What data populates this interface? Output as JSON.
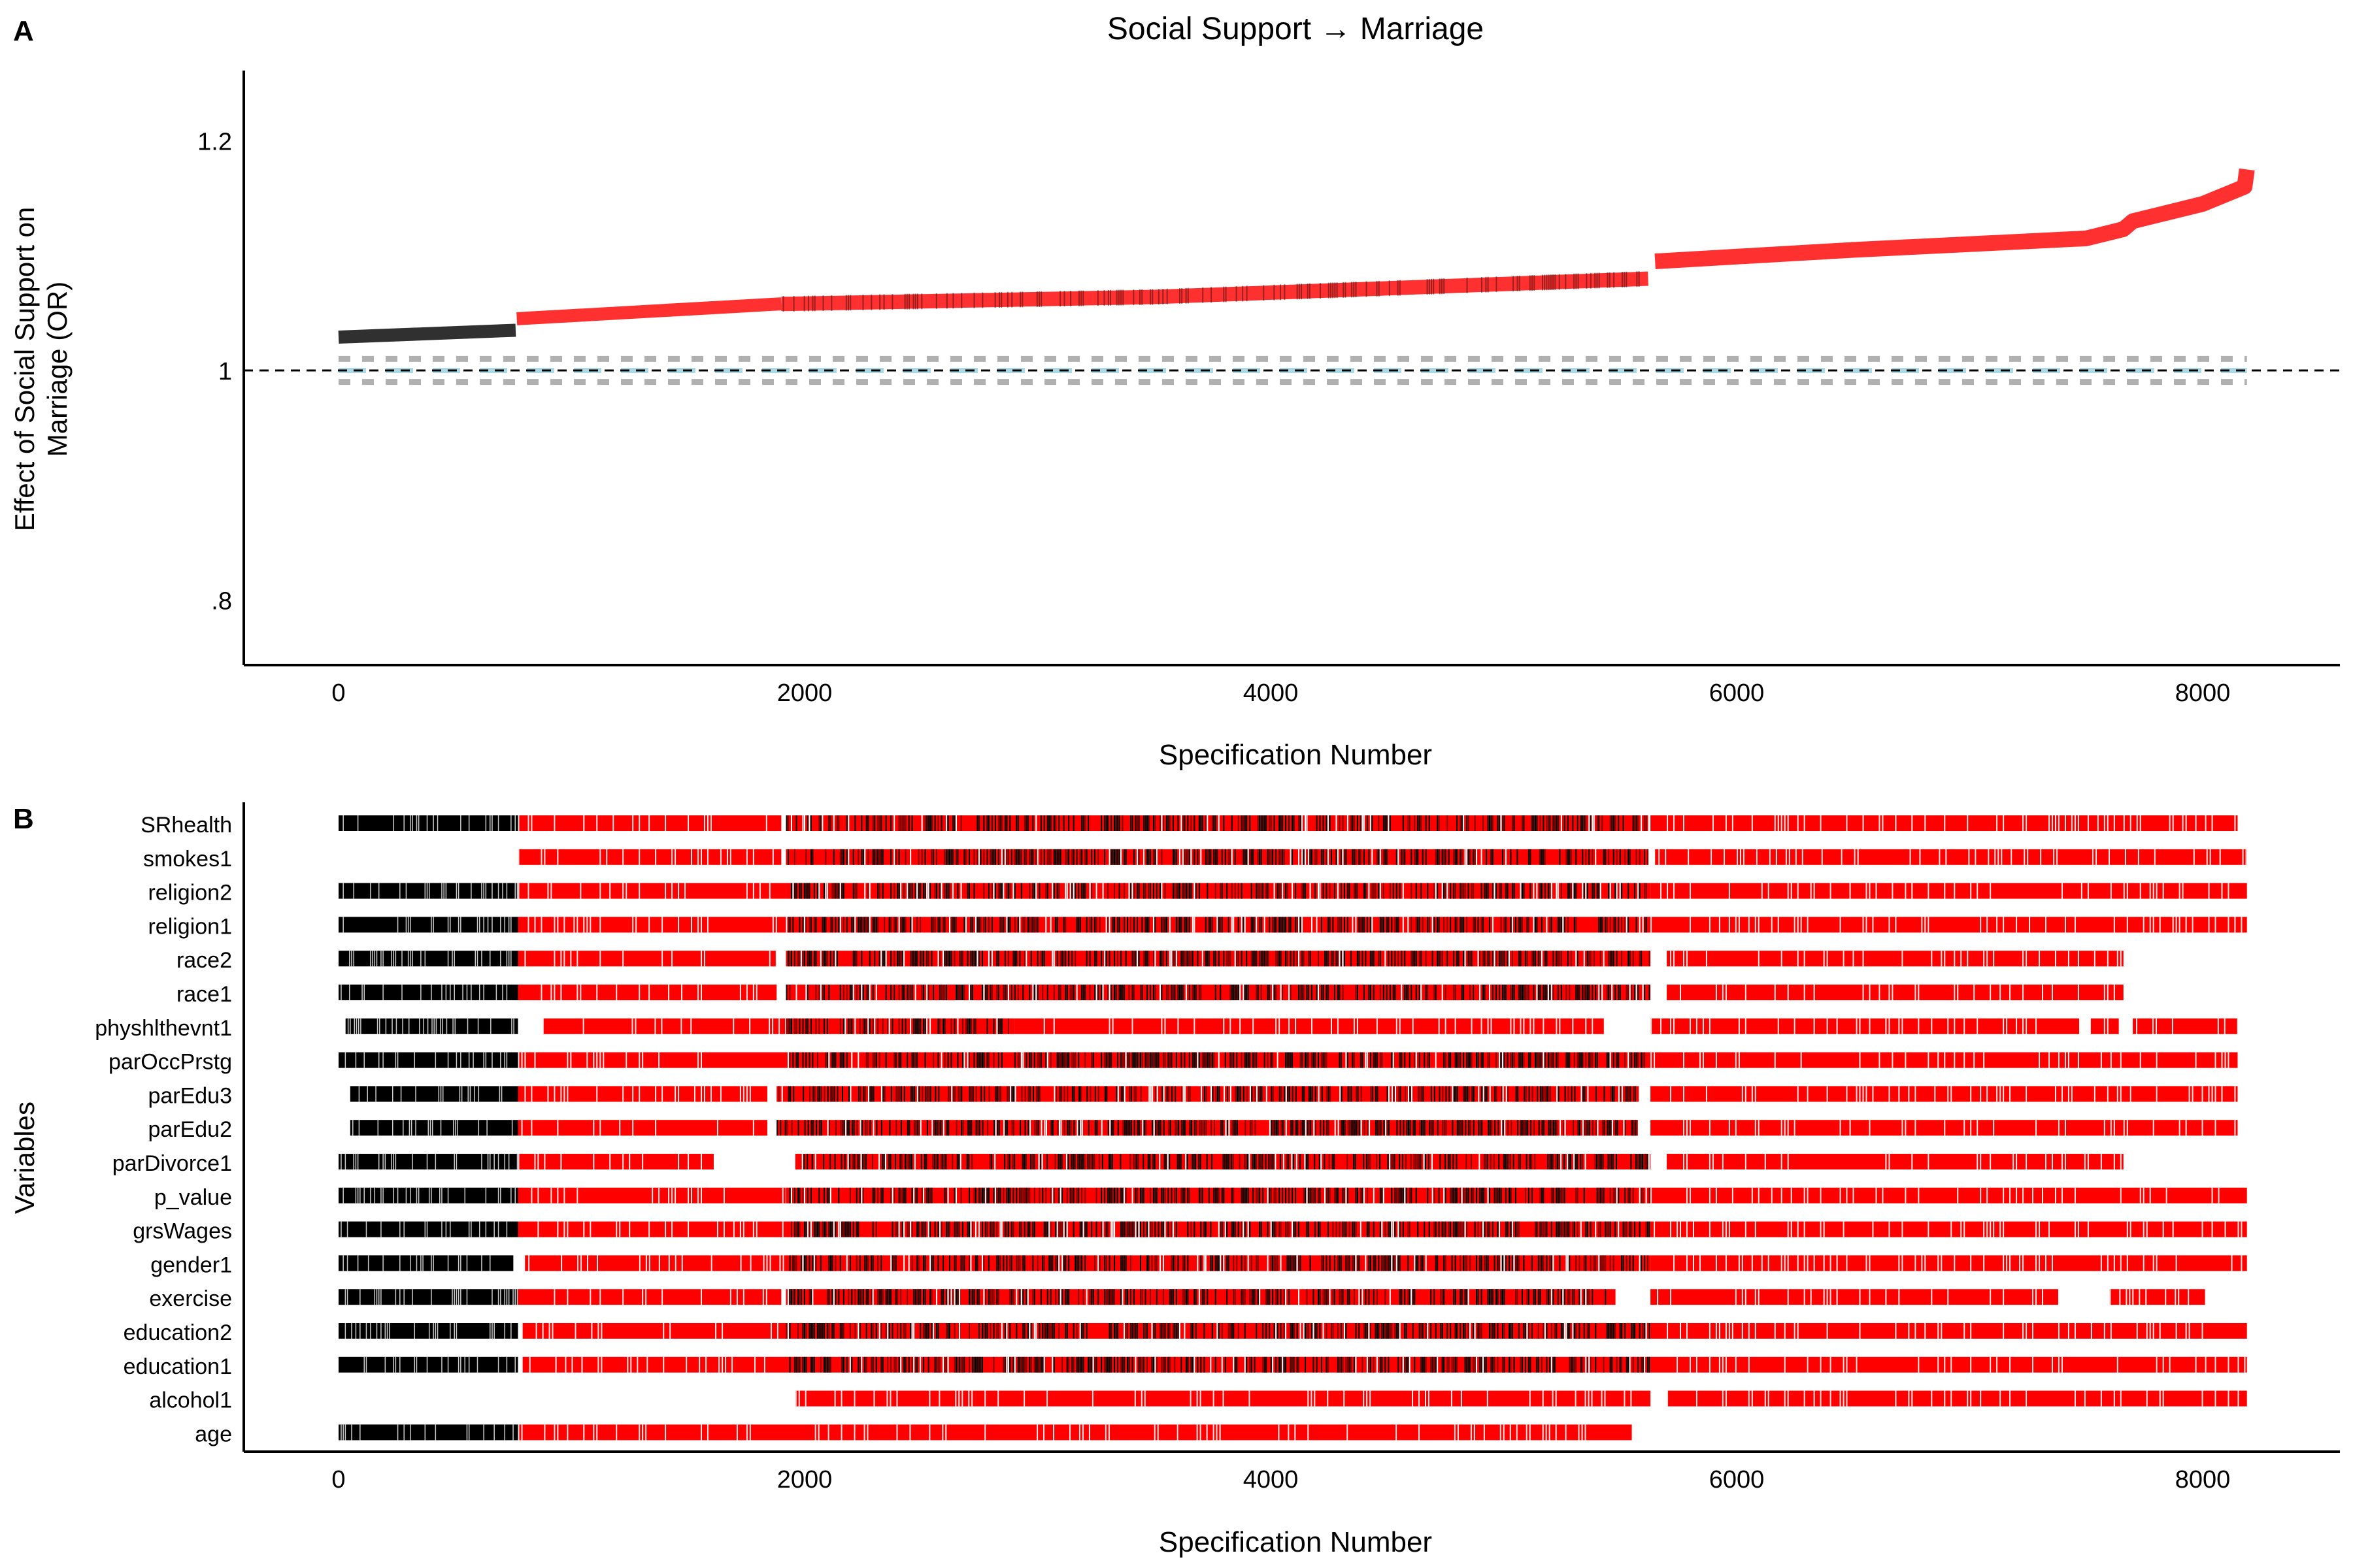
{
  "panel_a": {
    "letter": "A",
    "title": "Social Support → Marriage",
    "ylabel_line1": "Effect of Social Support on",
    "ylabel_line2": "Marriage (OR)",
    "xlabel": "Specification Number"
  },
  "panel_b": {
    "letter": "B",
    "ylabel": "Variables",
    "xlabel": "Specification Number"
  },
  "colors": {
    "significant": "#ff0000",
    "non_significant": "#000000",
    "curve_significant": "#ff3030",
    "curve_non_significant": "#303030",
    "null_band": "#add8e6",
    "null_band_ci": "#b0b0b0"
  },
  "chart_data": [
    {
      "type": "line",
      "title": "Social Support → Marriage",
      "xlabel": "Specification Number",
      "ylabel": "Effect of Social Support on Marriage (OR)",
      "xlim": [
        -400,
        8600
      ],
      "ylim": [
        0.74,
        1.26
      ],
      "x_ticks": [
        0,
        2000,
        4000,
        6000,
        8000
      ],
      "x_tick_labels": [
        "0",
        "2000",
        "4000",
        "6000",
        "8000"
      ],
      "y_ticks": [
        0.8,
        1.0,
        1.2
      ],
      "y_tick_labels": [
        ".8",
        "1",
        "1.2"
      ],
      "reference_line": 1.0,
      "series": [
        {
          "x": [
            0,
            760,
            765,
            1900,
            1940,
            3500,
            5630,
            5650,
            6500,
            7500,
            7660,
            7700,
            8000,
            8180,
            8190
          ],
          "y": [
            1.029,
            1.035,
            1.045,
            1.058,
            1.058,
            1.064,
            1.08,
            1.095,
            1.105,
            1.115,
            1.123,
            1.13,
            1.145,
            1.16,
            1.175
          ],
          "segments": [
            {
              "x_start": 0,
              "x_end": 760,
              "significant": false
            },
            {
              "x_start": 765,
              "x_end": 1900,
              "significant": true
            },
            {
              "x_start": 1900,
              "x_end": 5630,
              "significant": "mixed"
            },
            {
              "x_start": 5650,
              "x_end": 8190,
              "significant": true
            }
          ]
        },
        {
          "x": [
            0,
            8000
          ],
          "y": [
            1.0,
            1.0
          ],
          "ci": [
            0.99,
            1.01
          ]
        }
      ]
    },
    {
      "type": "heatmap",
      "xlabel": "Specification Number",
      "ylabel": "Variables",
      "xlim": [
        -400,
        8600
      ],
      "x_ticks": [
        0,
        2000,
        4000,
        6000,
        8000
      ],
      "x_tick_labels": [
        "0",
        "2000",
        "4000",
        "6000",
        "8000"
      ],
      "legend": "none",
      "rows": [
        {
          "name": "SRhealth",
          "segments": [
            [
              0,
              770,
              "n"
            ],
            [
              770,
              1900,
              "s"
            ],
            [
              1900,
              1920,
              "g"
            ],
            [
              1920,
              5620,
              "m"
            ],
            [
              5630,
              8150,
              "s"
            ]
          ]
        },
        {
          "name": "smokes1",
          "segments": [
            [
              770,
              1900,
              "s"
            ],
            [
              1920,
              5620,
              "m"
            ],
            [
              5650,
              8190,
              "s"
            ]
          ]
        },
        {
          "name": "religion2",
          "segments": [
            [
              0,
              770,
              "n"
            ],
            [
              770,
              1920,
              "s"
            ],
            [
              1920,
              5630,
              "m"
            ],
            [
              5630,
              8190,
              "s"
            ]
          ]
        },
        {
          "name": "religion1",
          "segments": [
            [
              0,
              770,
              "n"
            ],
            [
              770,
              1920,
              "s"
            ],
            [
              1920,
              5630,
              "m"
            ],
            [
              5630,
              8190,
              "s"
            ]
          ]
        },
        {
          "name": "race2",
          "segments": [
            [
              0,
              770,
              "n"
            ],
            [
              770,
              1880,
              "s"
            ],
            [
              1920,
              5630,
              "m"
            ],
            [
              5700,
              7660,
              "s"
            ]
          ]
        },
        {
          "name": "race1",
          "segments": [
            [
              0,
              770,
              "n"
            ],
            [
              770,
              1880,
              "s"
            ],
            [
              1920,
              5630,
              "m"
            ],
            [
              5700,
              7660,
              "s"
            ]
          ]
        },
        {
          "name": "physhlthevnt1",
          "segments": [
            [
              30,
              770,
              "n"
            ],
            [
              880,
              1920,
              "s"
            ],
            [
              1920,
              2900,
              "m"
            ],
            [
              2900,
              5430,
              "s"
            ],
            [
              5630,
              7470,
              "s"
            ],
            [
              7520,
              7640,
              "s"
            ],
            [
              7700,
              8150,
              "s"
            ]
          ]
        },
        {
          "name": "parOccPrstg",
          "segments": [
            [
              0,
              770,
              "n"
            ],
            [
              770,
              1920,
              "s"
            ],
            [
              1920,
              5630,
              "m"
            ],
            [
              5630,
              8150,
              "s"
            ]
          ]
        },
        {
          "name": "parEdu3",
          "segments": [
            [
              50,
              770,
              "n"
            ],
            [
              770,
              1840,
              "s"
            ],
            [
              1880,
              5580,
              "m"
            ],
            [
              5630,
              8150,
              "s"
            ]
          ]
        },
        {
          "name": "parEdu2",
          "segments": [
            [
              50,
              770,
              "n"
            ],
            [
              770,
              1840,
              "s"
            ],
            [
              1880,
              5580,
              "m"
            ],
            [
              5630,
              8150,
              "s"
            ]
          ]
        },
        {
          "name": "parDivorce1",
          "segments": [
            [
              0,
              770,
              "n"
            ],
            [
              770,
              1610,
              "s"
            ],
            [
              1960,
              5630,
              "m"
            ],
            [
              5700,
              7660,
              "s"
            ]
          ]
        },
        {
          "name": "p_value",
          "segments": [
            [
              0,
              770,
              "n"
            ],
            [
              770,
              1920,
              "s"
            ],
            [
              1920,
              5630,
              "m"
            ],
            [
              5630,
              8190,
              "s"
            ]
          ]
        },
        {
          "name": "grsWages",
          "segments": [
            [
              0,
              770,
              "n"
            ],
            [
              770,
              1920,
              "s"
            ],
            [
              1920,
              5630,
              "m"
            ],
            [
              5630,
              8190,
              "s"
            ]
          ]
        },
        {
          "name": "gender1",
          "segments": [
            [
              0,
              750,
              "n"
            ],
            [
              800,
              1920,
              "s"
            ],
            [
              1920,
              5630,
              "m"
            ],
            [
              5630,
              8190,
              "s"
            ]
          ]
        },
        {
          "name": "exercise",
          "segments": [
            [
              0,
              770,
              "n"
            ],
            [
              770,
              1900,
              "s"
            ],
            [
              1920,
              5480,
              "m"
            ],
            [
              5630,
              7380,
              "s"
            ],
            [
              7600,
              8010,
              "s"
            ]
          ]
        },
        {
          "name": "education2",
          "segments": [
            [
              0,
              770,
              "n"
            ],
            [
              790,
              1920,
              "s"
            ],
            [
              1920,
              5630,
              "m"
            ],
            [
              5630,
              8190,
              "s"
            ]
          ]
        },
        {
          "name": "education1",
          "segments": [
            [
              0,
              770,
              "n"
            ],
            [
              790,
              1920,
              "s"
            ],
            [
              1920,
              5630,
              "m"
            ],
            [
              5630,
              8190,
              "s"
            ]
          ]
        },
        {
          "name": "alcohol1",
          "segments": [
            [
              1960,
              5630,
              "s"
            ],
            [
              5700,
              8190,
              "s"
            ]
          ]
        },
        {
          "name": "age",
          "segments": [
            [
              0,
              770,
              "n"
            ],
            [
              770,
              5550,
              "s"
            ]
          ]
        }
      ]
    }
  ]
}
